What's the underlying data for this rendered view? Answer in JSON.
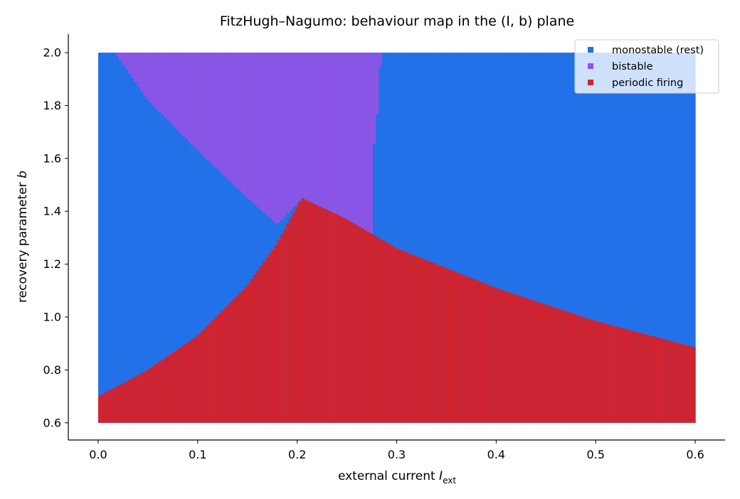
{
  "chart_data": {
    "type": "heatmap",
    "title": "FitzHugh–Nagumo: behaviour map in the (I, b) plane",
    "xlabel": {
      "text": "external current ",
      "symbol": "I",
      "subscript": "ext"
    },
    "ylabel": {
      "text": "recovery parameter ",
      "symbol": "b"
    },
    "xlim": [
      -0.03,
      0.63
    ],
    "ylim": [
      0.535,
      2.07
    ],
    "x_range": [
      0.0,
      0.6
    ],
    "y_range": [
      0.6,
      2.0
    ],
    "x_ticks": [
      0.0,
      0.1,
      0.2,
      0.3,
      0.4,
      0.5,
      0.6
    ],
    "x_tick_labels": [
      "0.0",
      "0.1",
      "0.2",
      "0.3",
      "0.4",
      "0.5",
      "0.6"
    ],
    "y_ticks": [
      0.6,
      0.8,
      1.0,
      1.2,
      1.4,
      1.6,
      1.8,
      2.0
    ],
    "y_tick_labels": [
      "0.6",
      "0.8",
      "1.0",
      "1.2",
      "1.4",
      "1.6",
      "1.8",
      "2.0"
    ],
    "grid": false,
    "legend_position": "top-right",
    "categories": [
      {
        "key": "monostable",
        "label": "monostable (rest)",
        "color": "#2271E8"
      },
      {
        "key": "bistable",
        "label": "bistable",
        "color": "#8B55E6"
      },
      {
        "key": "periodic",
        "label": "periodic firing",
        "color": "#D0232F"
      }
    ],
    "boundaries": {
      "periodic_upper_left": [
        [
          0.0,
          0.7
        ],
        [
          0.05,
          0.8
        ],
        [
          0.1,
          0.93
        ],
        [
          0.15,
          1.12
        ],
        [
          0.18,
          1.28
        ],
        [
          0.2,
          1.42
        ],
        [
          0.205,
          1.45
        ]
      ],
      "periodic_upper_right": [
        [
          0.205,
          1.45
        ],
        [
          0.25,
          1.37
        ],
        [
          0.3,
          1.26
        ],
        [
          0.4,
          1.11
        ],
        [
          0.5,
          0.985
        ],
        [
          0.6,
          0.885
        ]
      ],
      "bistable_lower_left": [
        [
          0.015,
          2.01
        ],
        [
          0.05,
          1.82
        ],
        [
          0.1,
          1.63
        ],
        [
          0.15,
          1.45
        ],
        [
          0.18,
          1.35
        ],
        [
          0.205,
          1.45
        ]
      ],
      "bistable_right_edge": [
        [
          0.275,
          1.3
        ],
        [
          0.275,
          1.58
        ],
        [
          0.28,
          1.73
        ],
        [
          0.282,
          1.88
        ],
        [
          0.285,
          2.01
        ]
      ]
    }
  }
}
